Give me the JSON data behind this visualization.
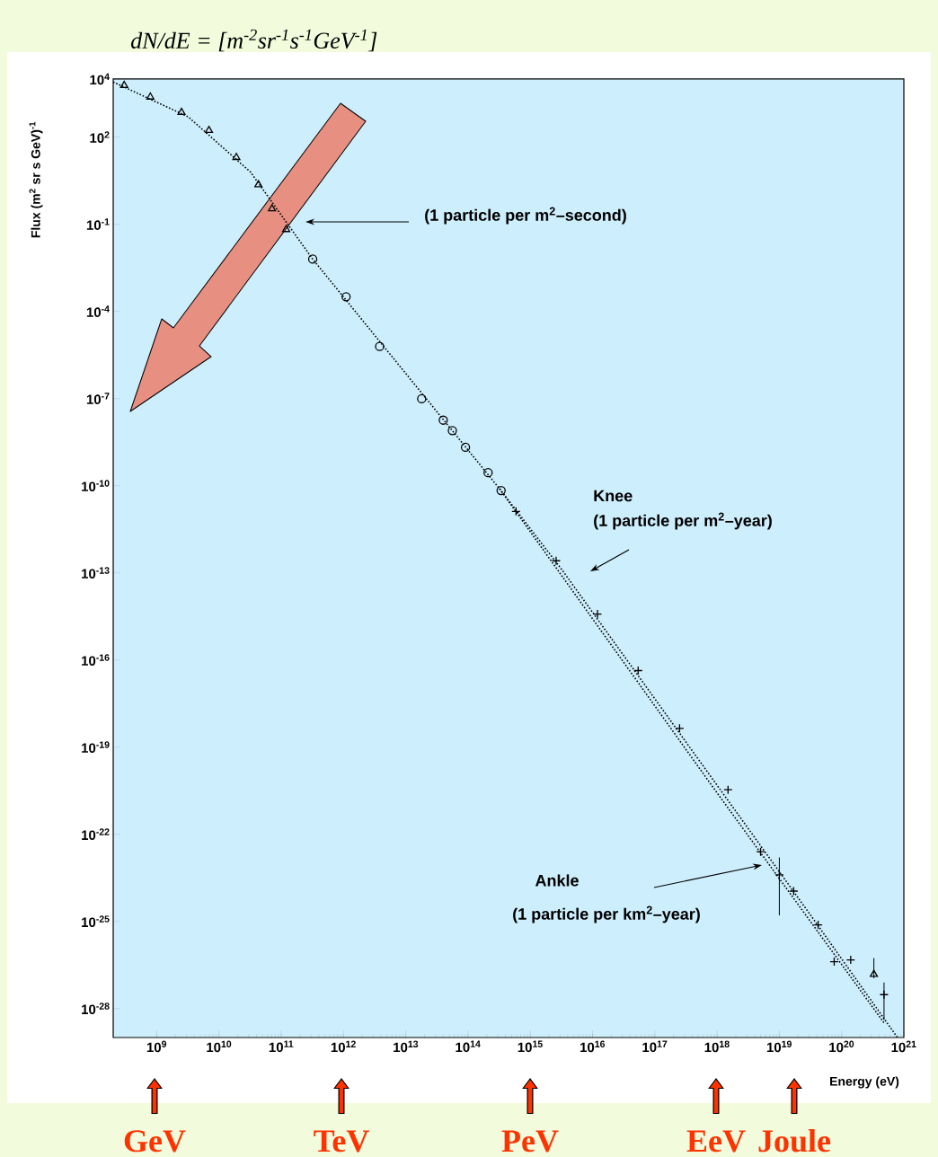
{
  "chart_data": {
    "type": "scatter",
    "xlabel": "Energy (eV)",
    "ylabel": "Flux (m$^{2}$ sr s GeV)$^{-1}$",
    "log": "xy",
    "xlim": [
      200000000.0,
      1e+21
    ],
    "ylim": [
      1e-29,
      10000.0
    ],
    "xticks": [
      {
        "value": 1000000000.0,
        "label": "10$^{9}$"
      },
      {
        "value": 10000000000.0,
        "label": "10$^{10}$"
      },
      {
        "value": 100000000000.0,
        "label": "10$^{11}$"
      },
      {
        "value": 1000000000000.0,
        "label": "10$^{12}$"
      },
      {
        "value": 10000000000000.0,
        "label": "10$^{13}$"
      },
      {
        "value": 100000000000000.0,
        "label": "10$^{14}$"
      },
      {
        "value": 1000000000000000.0,
        "label": "10$^{15}$"
      },
      {
        "value": 1e+16,
        "label": "10$^{16}$"
      },
      {
        "value": 1e+17,
        "label": "10$^{17}$"
      },
      {
        "value": 1e+18,
        "label": "10$^{18}$"
      },
      {
        "value": 1e+19,
        "label": "10$^{19}$"
      },
      {
        "value": 1e+20,
        "label": "10$^{20}$"
      },
      {
        "value": 1e+21,
        "label": "10$^{21}$"
      }
    ],
    "yticks": [
      {
        "value": 10000.0,
        "label": "10$^{4}$"
      },
      {
        "value": 100.0,
        "label": "10$^{2}$"
      },
      {
        "value": 0.1,
        "label": "10$^{-1}$"
      },
      {
        "value": 0.0001,
        "label": "10$^{-4}$"
      },
      {
        "value": 1e-07,
        "label": "10$^{-7}$"
      },
      {
        "value": 1e-10,
        "label": "10$^{-10}$"
      },
      {
        "value": 1e-13,
        "label": "10$^{-13}$"
      },
      {
        "value": 1e-16,
        "label": "10$^{-16}$"
      },
      {
        "value": 1e-19,
        "label": "10$^{-19}$"
      },
      {
        "value": 1e-22,
        "label": "10$^{-22}$"
      },
      {
        "value": 1e-25,
        "label": "10$^{-25}$"
      },
      {
        "value": 1e-28,
        "label": "10$^{-28}$"
      }
    ],
    "series": [
      {
        "marker": "triangle",
        "color": "#000000",
        "x": [
          300000000.0,
          790000000.0,
          2500000000.0,
          6900000000.0,
          19000000000.0,
          43000000000.0,
          71000000000.0,
          120000000000.0,
          3.3e+20
        ],
        "values": [
          6000.0,
          2400.0,
          710.0,
          170.0,
          20.0,
          2.3,
          0.34,
          0.066,
          1.5e-27
        ],
        "errors": [
          null,
          null,
          null,
          null,
          null,
          null,
          null,
          null,
          [
            1.1e-27,
            5.5e-27
          ]
        ]
      },
      {
        "marker": "circle",
        "color": "#000000",
        "x": [
          320000000000.0,
          1100000000000.0,
          3800000000000.0,
          18000000000000.0,
          40000000000000.0,
          56000000000000.0,
          91000000000000.0,
          210000000000000.0,
          340000000000000.0
        ],
        "values": [
          0.0063,
          0.00032,
          6.2e-06,
          9.8e-08,
          1.8e-08,
          7.9e-09,
          2.1e-09,
          2.8e-10,
          6.8e-11
        ]
      },
      {
        "marker": "cross",
        "color": "#000000",
        "x": [
          590000000000000.0,
          2600000000000000.0,
          1.2e+16,
          5.4e+16,
          2.5e+17,
          1.5e+18,
          5e+18,
          1e+19,
          1.7e+19,
          4.2e+19,
          7.6e+19,
          1.4e+20,
          4.8e+20
        ],
        "values": [
          1.3e-11,
          2.6e-13,
          3.8e-15,
          4.3e-17,
          4.4e-19,
          3.4e-21,
          2.5e-23,
          4e-24,
          1.1e-24,
          7.6e-26,
          4.1e-27,
          4.7e-27,
          3e-28
        ],
        "errors": [
          null,
          null,
          null,
          null,
          null,
          null,
          null,
          [
            1.6e-25,
            1.6e-23
          ],
          null,
          null,
          null,
          null,
          [
            4e-29,
            7.9e-28
          ]
        ]
      },
      {
        "type": "line",
        "line_style": "dotted",
        "color": "#000000",
        "x": [
          200000000.0,
          3200000000.0,
          32000000000.0,
          320000000000.0,
          320000000000000.0,
          3200000000000000.0,
          3.2e+19,
          7.9e+20
        ],
        "values": [
          7900.0,
          500.0,
          6.3,
          0.0063,
          7.9e-11,
          1.3e-13,
          1.6e-25,
          1e-29
        ]
      },
      {
        "type": "line",
        "line_style": "dotted",
        "color": "#000000",
        "x": [
          320000000000000.0,
          8.3e+17,
          4.8e+20
        ],
        "values": [
          7.9e-11,
          4.6e-21,
          3.2e-29
        ]
      }
    ],
    "annotations": [
      "(1 particle per m$^{2}$–second)",
      "Knee",
      "(1 particle per m$^{2}$–year)",
      "Ankle",
      "(1 particle per km$^{2}$–year)",
      "dN/dE = [m$^{-2}$sr$^{-1}$s$^{-1}$GeV$^{-1}$]",
      "GeV",
      "TeV",
      "PeV",
      "EeV",
      "Joule"
    ]
  }
}
